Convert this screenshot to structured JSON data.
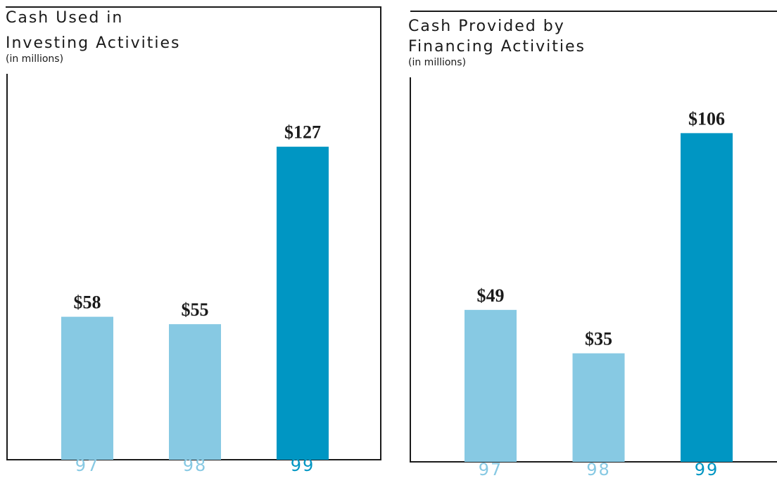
{
  "chart_data": [
    {
      "type": "bar",
      "title": "Cash Used in Investing Activities",
      "title_lines": [
        "Cash Used in",
        "Investing Activities"
      ],
      "subtitle": "(in millions)",
      "categories": [
        "97",
        "98",
        "99"
      ],
      "values": [
        58,
        55,
        127
      ],
      "value_labels": [
        "$58",
        "$55",
        "$127"
      ],
      "colors": [
        "#87c9e3",
        "#87c9e3",
        "#0096c3"
      ],
      "ylim": [
        0,
        158
      ]
    },
    {
      "type": "bar",
      "title": "Cash Provided by Financing Activities",
      "title_lines": [
        "Cash Provided by",
        "Financing Activities"
      ],
      "subtitle": "(in millions)",
      "categories": [
        "97",
        "98",
        "99"
      ],
      "values": [
        49,
        35,
        106
      ],
      "value_labels": [
        "$49",
        "$35",
        "$106"
      ],
      "colors": [
        "#87c9e3",
        "#87c9e3",
        "#0096c3"
      ],
      "ylim": [
        0,
        124
      ]
    }
  ]
}
